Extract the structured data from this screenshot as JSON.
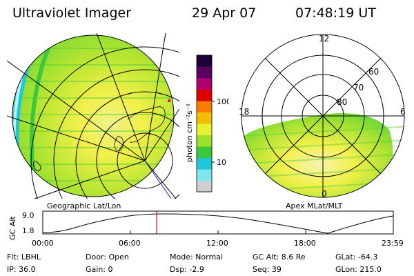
{
  "header": {
    "instrument": "Ultraviolet Imager",
    "date": "29 Apr 07",
    "time": "07:48:19 UT"
  },
  "colorbar": {
    "unit_label": "photon cm⁻²s⁻¹",
    "tick_labels": [
      "100",
      "10"
    ],
    "colors": [
      "#cfcfcf",
      "#7fe6f0",
      "#1ec8d8",
      "#3cc83c",
      "#9be02a",
      "#e8f030",
      "#f0c000",
      "#ff7a00",
      "#e00000",
      "#b0006e",
      "#5a0060",
      "#1e0038"
    ]
  },
  "left_panel": {
    "caption": "Geographic Lat/Lon"
  },
  "right_panel": {
    "caption": "Apex MLat/MLT",
    "mlt_labels": {
      "top": "12",
      "left": "18",
      "right": "6",
      "bottom": "0"
    },
    "mlat_labels": [
      "60",
      "70",
      "80"
    ]
  },
  "timeline": {
    "ylabel": "GC Alt",
    "y_ticks": [
      "9.0",
      "1.8"
    ],
    "x_ticks": [
      "00:00",
      "06:00",
      "12:00",
      "18:00",
      "23:59"
    ],
    "current_time_marker_fraction": 0.325
  },
  "status": {
    "flt": "Flt: LBHL",
    "ip": "IP: 36.0",
    "door": "Door: Open",
    "gain": "Gain:  0",
    "mode": "Mode: Normal",
    "dsp": "Dsp:    -2.9",
    "gc_alt": "GC Alt: 8.6 Re",
    "seq": "Seq: 39",
    "glat": "GLat:  -64.3",
    "glon": "GLon:  215.0"
  }
}
